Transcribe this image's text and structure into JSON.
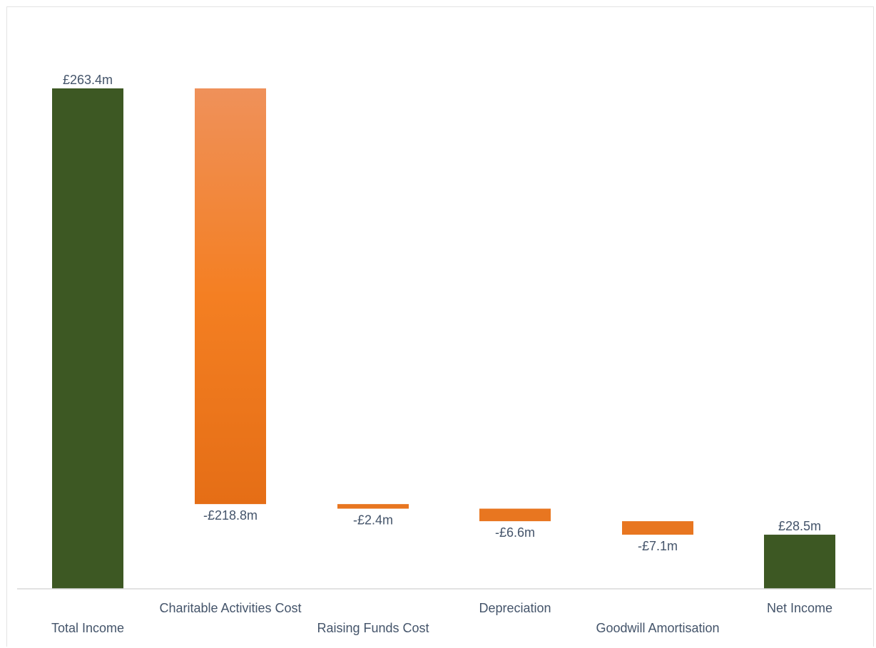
{
  "chart_data": {
    "type": "bar",
    "title": "",
    "xlabel": "",
    "ylabel": "",
    "categories": [
      "Total Income",
      "Charitable Activities Cost",
      "Raising Funds Cost",
      "Depreciation",
      "Goodwill Amortisation",
      "Net Income"
    ],
    "values": [
      263.4,
      -218.8,
      -2.4,
      -6.6,
      -7.1,
      28.5
    ],
    "data_labels": [
      "£263.4m",
      "-£218.8m",
      "-£2.4m",
      "-£6.6m",
      "-£7.1m",
      "£28.5m"
    ],
    "kinds": [
      "total",
      "delta",
      "delta",
      "delta",
      "delta",
      "total"
    ],
    "unit": "£m",
    "ylim": [
      0,
      263.4
    ],
    "grid": false,
    "legend": "none",
    "colors": {
      "total": "#3d5823",
      "negative": "#e87620",
      "negative_gradient": [
        "#ef915a",
        "#f47f22",
        "#e56e16"
      ],
      "axis": "#d9d9d9",
      "text": "#44546a"
    }
  }
}
